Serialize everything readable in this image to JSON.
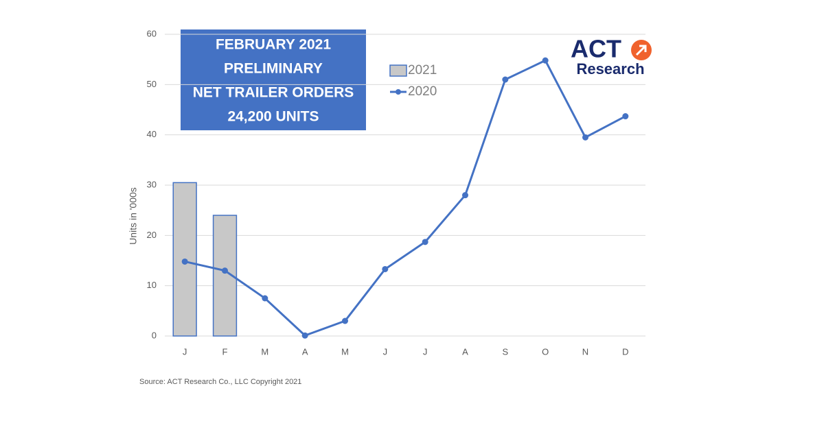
{
  "chart_data": {
    "type": "bar",
    "annotation_lines": [
      "FEBRUARY 2021",
      "PRELIMINARY",
      "NET TRAILER ORDERS",
      "24,200 UNITS"
    ],
    "logo": {
      "top": "ACT",
      "bottom": "Research"
    },
    "y_label": "Units in '000s",
    "source": "Source: ACT Research Co., LLC Copyright 2021",
    "categories": [
      "J",
      "F",
      "M",
      "A",
      "M",
      "J",
      "J",
      "A",
      "S",
      "O",
      "N",
      "D"
    ],
    "series": [
      {
        "name": "2021",
        "type": "bar",
        "color": "#c8c8c8",
        "values": [
          30.5,
          24,
          null,
          null,
          null,
          null,
          null,
          null,
          null,
          null,
          null,
          null
        ]
      },
      {
        "name": "2020",
        "type": "line",
        "color": "#4472c4",
        "values": [
          14.8,
          13,
          7.5,
          0.1,
          3,
          13.3,
          18.7,
          28,
          51,
          54.8,
          39.5,
          43.7
        ]
      }
    ],
    "ylim": [
      0,
      60
    ],
    "yticks": [
      0,
      10,
      20,
      30,
      40,
      50,
      60
    ],
    "grid": true
  }
}
